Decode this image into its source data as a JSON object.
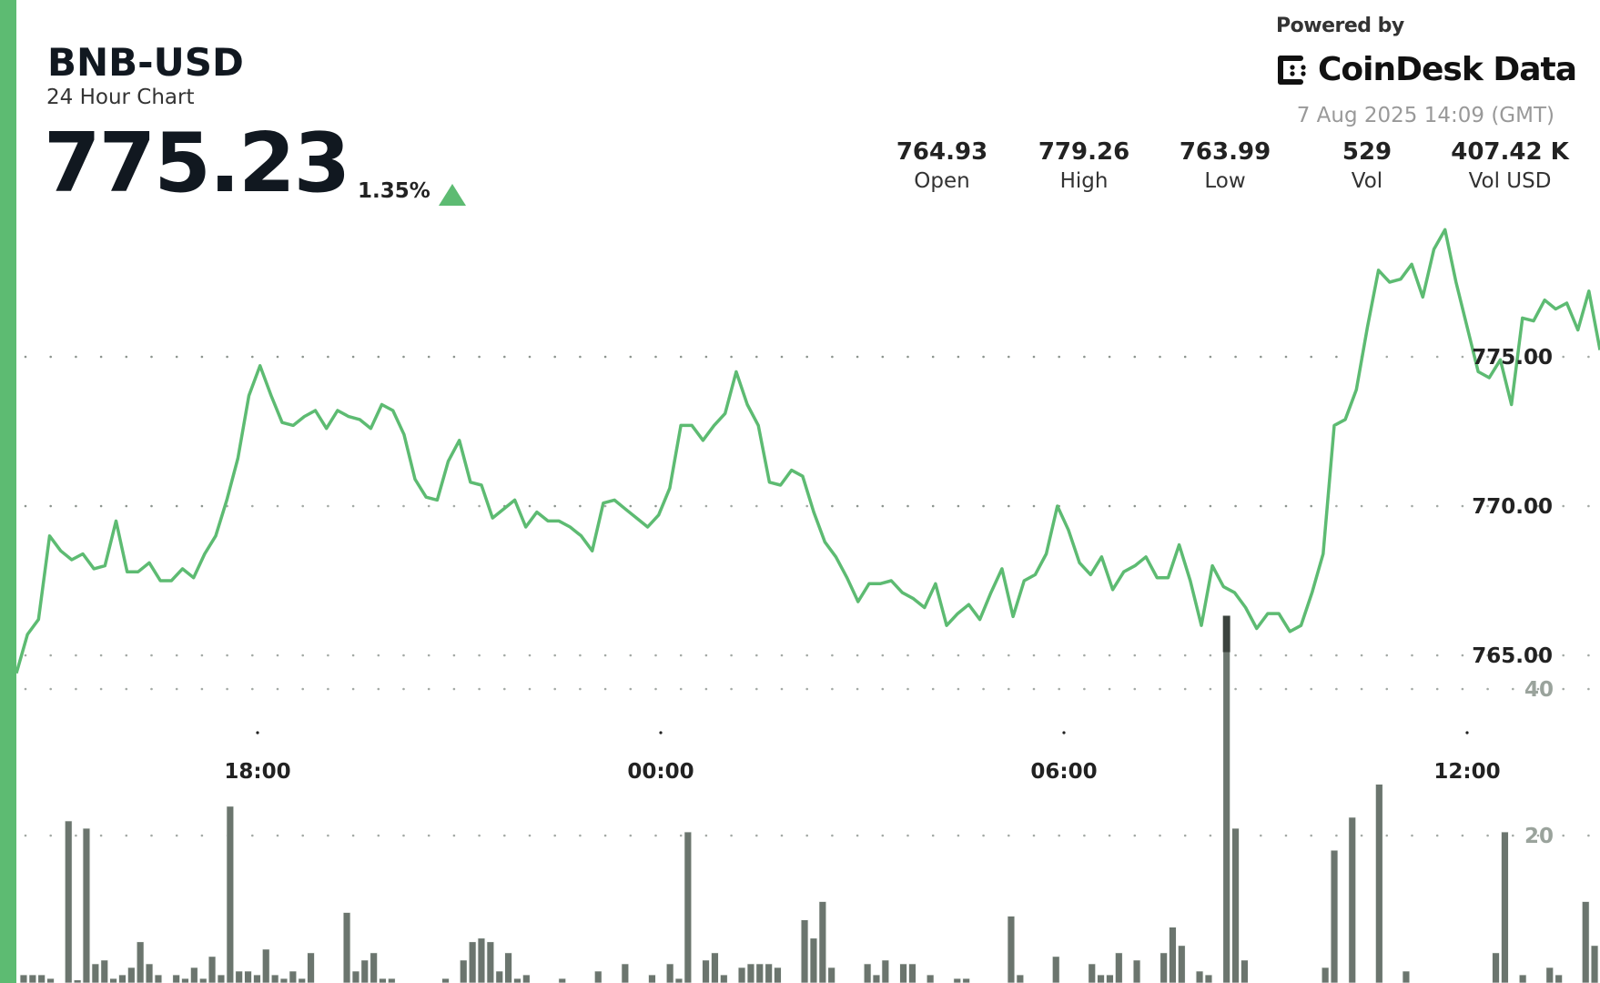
{
  "header": {
    "symbol": "BNB-USD",
    "subtitle": "24 Hour Chart",
    "price": "775.23",
    "change_pct": "1.35%",
    "change_direction": "up"
  },
  "branding": {
    "powered_by": "Powered by",
    "brand_name": "CoinDesk Data",
    "timestamp": "7 Aug 2025 14:09 (GMT)"
  },
  "stats": [
    {
      "value": "764.93",
      "label": "Open"
    },
    {
      "value": "779.26",
      "label": "High"
    },
    {
      "value": "763.99",
      "label": "Low"
    },
    {
      "value": "529",
      "label": "Vol"
    },
    {
      "value": "407.42 K",
      "label": "Vol USD"
    }
  ],
  "colors": {
    "accent": "#5dbb72",
    "line": "#5dbb72",
    "area_top": "#7fcc8f",
    "volume_bar": "#6b756e",
    "volume_bar_highlight": "#3c433e"
  },
  "chart_data": {
    "type": "area",
    "title": "BNB-USD 24 Hour Chart",
    "x_ticks": [
      "18:00",
      "00:00",
      "06:00",
      "12:00"
    ],
    "y_ticks": [
      "765.00",
      "770.00",
      "775.00"
    ],
    "volume_ticks": [
      "20",
      "40"
    ],
    "ylim": [
      762.0,
      780.0
    ],
    "grid": "dotted",
    "price_series": {
      "name": "Price (USD)",
      "approx_values": [
        764.4,
        765.7,
        766.2,
        769.0,
        768.5,
        768.2,
        768.4,
        767.9,
        768.0,
        769.5,
        767.8,
        767.8,
        768.1,
        767.5,
        767.5,
        767.9,
        767.6,
        768.4,
        769.0,
        770.2,
        771.6,
        773.7,
        774.7,
        773.7,
        772.8,
        772.7,
        773.0,
        773.2,
        772.6,
        773.2,
        773.0,
        772.9,
        772.6,
        773.4,
        773.2,
        772.4,
        770.9,
        770.3,
        770.2,
        771.5,
        772.2,
        770.8,
        770.7,
        769.6,
        769.9,
        770.2,
        769.3,
        769.8,
        769.5,
        769.5,
        769.3,
        769.0,
        768.5,
        770.1,
        770.2,
        769.9,
        769.6,
        769.3,
        769.7,
        770.6,
        772.7,
        772.7,
        772.2,
        772.7,
        773.1,
        774.5,
        773.4,
        772.7,
        770.8,
        770.7,
        771.2,
        771.0,
        769.8,
        768.8,
        768.3,
        767.6,
        766.8,
        767.4,
        767.4,
        767.5,
        767.1,
        766.9,
        766.6,
        767.4,
        766.0,
        766.4,
        766.7,
        766.2,
        767.1,
        767.9,
        766.3,
        767.5,
        767.7,
        768.4,
        770.0,
        769.2,
        768.1,
        767.7,
        768.3,
        767.2,
        767.8,
        768.0,
        768.3,
        767.6,
        767.6,
        768.7,
        767.5,
        766.0,
        768.0,
        767.3,
        767.1,
        766.6,
        765.9,
        766.4,
        766.4,
        765.8,
        766.0,
        767.1,
        768.4,
        772.7,
        772.9,
        773.9,
        776.0,
        777.9,
        777.5,
        777.6,
        778.1,
        777.0,
        778.6,
        779.26,
        777.5,
        776.0,
        774.5,
        774.3,
        774.9,
        773.4,
        776.3,
        776.2,
        776.9,
        776.6,
        776.8,
        775.9,
        777.2,
        775.23
      ]
    },
    "volume_series": {
      "name": "Volume",
      "approx_values": [
        1,
        1,
        1,
        0.5,
        0,
        22,
        0.3,
        21,
        2.5,
        3,
        0.5,
        1,
        2,
        5.5,
        2.5,
        1,
        0,
        1,
        0.5,
        2,
        0.5,
        3.5,
        1,
        24,
        1.5,
        1.5,
        1,
        4.5,
        1,
        0.5,
        1.5,
        0.5,
        4,
        0,
        0,
        0,
        9.5,
        1.5,
        3,
        4,
        0.5,
        0.5,
        0,
        0,
        0,
        0,
        0,
        0.5,
        0,
        3,
        5.5,
        6,
        5.5,
        1.5,
        4,
        0.5,
        1,
        0,
        0,
        0,
        0.5,
        0,
        0,
        0,
        1.5,
        0,
        0,
        2.5,
        0,
        0,
        1,
        0,
        2.5,
        0.5,
        20.5,
        0,
        3,
        4,
        1,
        0,
        2,
        2.5,
        2.5,
        2.5,
        2,
        0,
        0,
        8.5,
        6,
        11,
        2,
        0,
        0,
        0,
        2.5,
        1,
        3,
        0,
        2.5,
        2.5,
        0,
        1,
        0,
        0,
        0.5,
        0.5,
        0,
        0,
        0,
        0,
        9,
        1,
        0,
        0,
        0,
        3.5,
        0,
        0,
        0,
        2.5,
        1,
        1,
        4,
        0,
        3,
        0,
        0,
        4,
        7.5,
        5,
        0,
        1.5,
        1,
        0,
        50,
        21,
        3,
        0,
        0,
        0,
        0,
        0,
        0,
        0,
        0,
        2,
        18,
        0,
        22.5,
        0,
        0,
        27,
        0,
        0,
        1.5,
        0,
        0,
        0,
        0,
        0,
        0,
        0,
        0,
        0,
        4,
        20.5,
        0,
        1,
        0,
        0,
        2,
        1,
        0,
        0,
        11,
        5
      ]
    }
  }
}
